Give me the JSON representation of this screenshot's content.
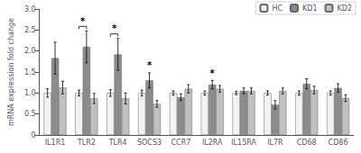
{
  "chart_data": {
    "type": "bar",
    "categories": [
      "IL1R1",
      "TLR2",
      "TLR4",
      "SOCS3",
      "CCR7",
      "IL2RA",
      "IL15RA",
      "IL7R",
      "CD68",
      "CD86"
    ],
    "series": [
      {
        "name": "HC",
        "color": "#f2f2f2",
        "values": [
          1.0,
          1.0,
          1.0,
          1.0,
          1.0,
          1.0,
          1.0,
          1.0,
          1.0,
          1.0
        ],
        "errors": [
          0.1,
          0.07,
          0.08,
          0.07,
          0.05,
          0.05,
          0.04,
          0.05,
          0.05,
          0.05
        ]
      },
      {
        "name": "KD1",
        "color": "#8c8c8c",
        "values": [
          1.83,
          2.1,
          1.92,
          1.3,
          0.9,
          1.2,
          1.05,
          0.72,
          1.22,
          1.12
        ],
        "errors": [
          0.38,
          0.38,
          0.38,
          0.18,
          0.08,
          0.1,
          0.07,
          0.1,
          0.12,
          0.1
        ]
      },
      {
        "name": "KD2",
        "color": "#c0c0c0",
        "values": [
          1.13,
          0.87,
          0.87,
          0.74,
          1.1,
          1.1,
          1.05,
          1.05,
          1.07,
          0.88
        ],
        "errors": [
          0.15,
          0.12,
          0.13,
          0.08,
          0.1,
          0.08,
          0.07,
          0.07,
          0.09,
          0.08
        ]
      }
    ],
    "annotations": [
      {
        "text": "*",
        "category": "TLR2",
        "from": "HC",
        "to": "KD1"
      },
      {
        "text": "*",
        "category": "TLR4",
        "from": "HC",
        "to": "KD1"
      },
      {
        "text": "*",
        "category": "SOCS3",
        "series": "KD1"
      },
      {
        "text": "*",
        "category": "IL2RA",
        "series": "KD1"
      }
    ],
    "ylabel": "mRNA expression fold change",
    "ylim": [
      0,
      3.0
    ],
    "yticks": [
      0,
      0.5,
      {
        "value": 1.0,
        "label": "1.0"
      },
      1.5,
      {
        "value": 2.0,
        "label": "2.0"
      },
      2.5,
      {
        "value": 3.0,
        "label": "3.0"
      }
    ],
    "grid": false,
    "legend": "upper right"
  }
}
